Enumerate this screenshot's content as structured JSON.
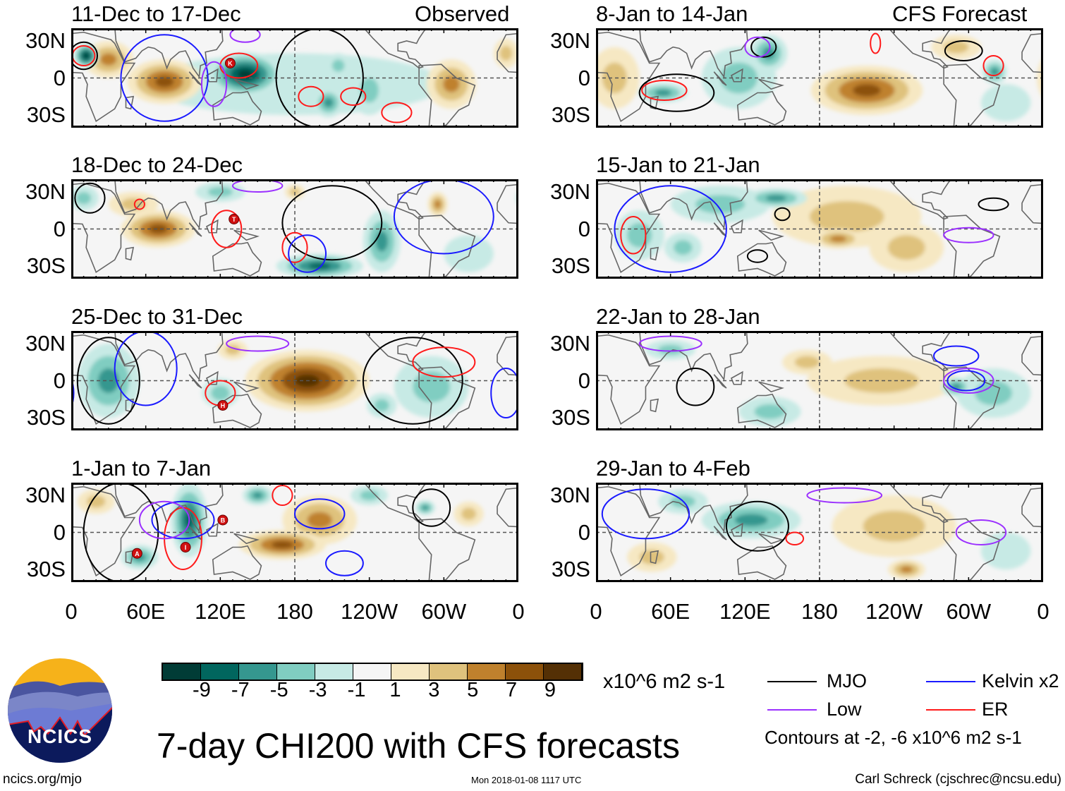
{
  "header": {
    "observed_label": "Observed",
    "forecast_label": "CFS Forecast"
  },
  "lat_labels": [
    "30N",
    "0",
    "30S"
  ],
  "xticks": [
    "0",
    "60E",
    "120E",
    "180",
    "120W",
    "60W",
    "0"
  ],
  "colors": {
    "neg": [
      "#c7eae5",
      "#80cdc1",
      "#35978f",
      "#01665e",
      "#013c36"
    ],
    "pos": [
      "#f6e8c3",
      "#dfc27d",
      "#bf812d",
      "#8c510a",
      "#543005"
    ],
    "neutral": "#f5f5f5",
    "MJO": "#000000",
    "Kelvin": "#1a1aff",
    "Low": "#9b30ff",
    "ER": "#ff1a1a"
  },
  "panels": [
    {
      "title": "11-Dec to 17-Dec",
      "col": 0,
      "row": 0,
      "anom": [
        [
          180,
          -5,
          120,
          25,
          -1
        ],
        [
          75,
          -3,
          30,
          18,
          7
        ],
        [
          30,
          15,
          20,
          15,
          5
        ],
        [
          140,
          3,
          30,
          18,
          -9
        ],
        [
          12,
          18,
          10,
          10,
          -9
        ],
        [
          207,
          -20,
          12,
          12,
          -5
        ],
        [
          215,
          10,
          10,
          10,
          -3
        ],
        [
          306,
          -5,
          20,
          20,
          5
        ],
        [
          240,
          -10,
          15,
          20,
          -3
        ],
        [
          350,
          20,
          10,
          12,
          3
        ]
      ],
      "contours": [
        [
          "Kelvin",
          75,
          0,
          35,
          35
        ],
        [
          "ER",
          135,
          10,
          15,
          10
        ],
        [
          "MJO",
          200,
          0,
          35,
          40
        ],
        [
          "ER",
          193,
          -15,
          10,
          8
        ],
        [
          "ER",
          227,
          -15,
          10,
          7
        ],
        [
          "ER",
          262,
          -28,
          12,
          8
        ],
        [
          "Low",
          115,
          -5,
          10,
          18
        ],
        [
          "Low",
          140,
          35,
          12,
          6
        ],
        [
          "MJO",
          10,
          18,
          11,
          11
        ],
        [
          "ER",
          10,
          18,
          9,
          8
        ]
      ],
      "markers": [
        [
          "K",
          128,
          12
        ]
      ]
    },
    {
      "title": "18-Dec to 24-Dec",
      "col": 0,
      "row": 1,
      "anom": [
        [
          70,
          0,
          30,
          15,
          7
        ],
        [
          50,
          20,
          20,
          10,
          3
        ],
        [
          295,
          20,
          8,
          10,
          5
        ],
        [
          200,
          -30,
          35,
          10,
          -7
        ],
        [
          250,
          -10,
          15,
          25,
          -5
        ],
        [
          10,
          25,
          12,
          10,
          -3
        ],
        [
          120,
          30,
          20,
          8,
          -3
        ],
        [
          180,
          30,
          8,
          6,
          3
        ],
        [
          320,
          -20,
          20,
          15,
          -1
        ]
      ],
      "contours": [
        [
          "MJO",
          210,
          5,
          40,
          30
        ],
        [
          "ER",
          125,
          0,
          12,
          15
        ],
        [
          "ER",
          180,
          -15,
          10,
          12
        ],
        [
          "Kelvin",
          190,
          -20,
          15,
          15
        ],
        [
          "Kelvin",
          300,
          10,
          40,
          30
        ],
        [
          "Low",
          150,
          35,
          20,
          5
        ],
        [
          "MJO",
          15,
          25,
          12,
          12
        ],
        [
          "ER",
          55,
          20,
          4,
          4
        ]
      ],
      "markers": [
        [
          "T",
          131,
          8
        ]
      ]
    },
    {
      "title": "25-Dec to 31-Dec",
      "col": 0,
      "row": 2,
      "anom": [
        [
          190,
          0,
          50,
          25,
          9
        ],
        [
          30,
          0,
          25,
          30,
          -5
        ],
        [
          120,
          -10,
          15,
          12,
          -3
        ],
        [
          290,
          -5,
          30,
          25,
          -3
        ],
        [
          250,
          -20,
          12,
          10,
          -3
        ],
        [
          130,
          25,
          12,
          8,
          3
        ]
      ],
      "contours": [
        [
          "MJO",
          30,
          0,
          25,
          35
        ],
        [
          "MJO",
          275,
          0,
          40,
          35
        ],
        [
          "ER",
          300,
          15,
          25,
          12
        ],
        [
          "ER",
          120,
          -10,
          12,
          10
        ],
        [
          "Kelvin",
          60,
          10,
          25,
          30
        ],
        [
          "Low",
          150,
          30,
          25,
          6
        ],
        [
          "Kelvin",
          350,
          -10,
          12,
          20
        ]
      ],
      "markers": [
        [
          "H",
          122,
          -20
        ]
      ]
    },
    {
      "title": "1-Jan to 7-Jan",
      "col": 0,
      "row": 3,
      "anom": [
        [
          170,
          -10,
          35,
          12,
          7
        ],
        [
          200,
          10,
          30,
          20,
          5
        ],
        [
          95,
          10,
          15,
          30,
          -7
        ],
        [
          150,
          30,
          12,
          8,
          -5
        ],
        [
          55,
          -20,
          15,
          10,
          -5
        ],
        [
          285,
          20,
          8,
          6,
          -5
        ],
        [
          320,
          15,
          12,
          10,
          3
        ],
        [
          20,
          25,
          15,
          10,
          3
        ],
        [
          240,
          30,
          15,
          8,
          -3
        ]
      ],
      "contours": [
        [
          "MJO",
          290,
          20,
          15,
          15
        ],
        [
          "MJO",
          40,
          0,
          30,
          40
        ],
        [
          "ER",
          90,
          -5,
          15,
          25
        ],
        [
          "Kelvin",
          90,
          10,
          25,
          15
        ],
        [
          "Kelvin",
          200,
          15,
          20,
          12
        ],
        [
          "Kelvin",
          220,
          -25,
          15,
          10
        ],
        [
          "Low",
          75,
          10,
          20,
          15
        ],
        [
          "ER",
          170,
          30,
          8,
          8
        ]
      ],
      "markers": [
        [
          "B",
          122,
          10
        ],
        [
          "A",
          53,
          -17
        ],
        [
          "I",
          92,
          -12
        ]
      ]
    },
    {
      "title": "8-Jan to 14-Jan",
      "col": 1,
      "row": 0,
      "anom": [
        [
          218,
          -10,
          45,
          20,
          7
        ],
        [
          54,
          -12,
          20,
          8,
          -5
        ],
        [
          139,
          20,
          15,
          15,
          -5
        ],
        [
          115,
          0,
          30,
          25,
          -3
        ],
        [
          15,
          0,
          20,
          25,
          3
        ],
        [
          321,
          5,
          10,
          10,
          -5
        ],
        [
          290,
          25,
          20,
          10,
          3
        ],
        [
          330,
          -20,
          20,
          15,
          -1
        ]
      ],
      "contours": [
        [
          "MJO",
          65,
          -12,
          30,
          15
        ],
        [
          "MJO",
          135,
          25,
          10,
          8
        ],
        [
          "MJO",
          296,
          22,
          15,
          8
        ],
        [
          "ER",
          55,
          -10,
          18,
          8
        ],
        [
          "ER",
          225,
          28,
          4,
          8
        ],
        [
          "ER",
          320,
          10,
          8,
          8
        ],
        [
          "Low",
          130,
          25,
          10,
          8
        ]
      ],
      "markers": []
    },
    {
      "title": "15-Jan to 21-Jan",
      "col": 1,
      "row": 1,
      "anom": [
        [
          202,
          10,
          60,
          25,
          3
        ],
        [
          195,
          -8,
          20,
          8,
          5
        ],
        [
          145,
          25,
          25,
          8,
          -5
        ],
        [
          100,
          20,
          40,
          15,
          -3
        ],
        [
          35,
          -5,
          20,
          20,
          -3
        ],
        [
          70,
          -15,
          15,
          12,
          -3
        ],
        [
          250,
          -15,
          30,
          20,
          3
        ]
      ],
      "contours": [
        [
          "MJO",
          150,
          12,
          6,
          5
        ],
        [
          "MJO",
          130,
          -22,
          8,
          5
        ],
        [
          "MJO",
          320,
          20,
          12,
          5
        ],
        [
          "ER",
          30,
          -5,
          10,
          15
        ],
        [
          "Kelvin",
          60,
          0,
          45,
          35
        ],
        [
          "Low",
          300,
          -5,
          20,
          6
        ]
      ],
      "markers": []
    },
    {
      "title": "22-Jan to 28-Jan",
      "col": 1,
      "row": 2,
      "anom": [
        [
          230,
          0,
          60,
          20,
          3
        ],
        [
          170,
          15,
          20,
          10,
          3
        ],
        [
          290,
          -5,
          12,
          8,
          -5
        ],
        [
          320,
          -10,
          30,
          20,
          -3
        ],
        [
          60,
          25,
          20,
          8,
          -3
        ],
        [
          140,
          -25,
          25,
          12,
          -3
        ]
      ],
      "contours": [
        [
          "MJO",
          80,
          -5,
          15,
          15
        ],
        [
          "Kelvin",
          290,
          20,
          18,
          8
        ],
        [
          "Kelvin",
          298,
          0,
          15,
          8
        ],
        [
          "Low",
          300,
          0,
          20,
          10
        ],
        [
          "Low",
          60,
          30,
          25,
          6
        ]
      ],
      "markers": []
    },
    {
      "title": "29-Jan to 4-Feb",
      "col": 1,
      "row": 3,
      "anom": [
        [
          240,
          5,
          50,
          25,
          3
        ],
        [
          250,
          -30,
          15,
          8,
          5
        ],
        [
          125,
          10,
          40,
          15,
          -5
        ],
        [
          70,
          25,
          20,
          10,
          -3
        ],
        [
          45,
          -20,
          20,
          12,
          3
        ],
        [
          330,
          -15,
          20,
          15,
          -1
        ]
      ],
      "contours": [
        [
          "MJO",
          130,
          5,
          25,
          20
        ],
        [
          "ER",
          160,
          -5,
          7,
          5
        ],
        [
          "Kelvin",
          40,
          15,
          35,
          20
        ],
        [
          "Low",
          310,
          0,
          20,
          10
        ],
        [
          "Low",
          200,
          30,
          30,
          6
        ]
      ],
      "markers": []
    }
  ],
  "colorbar": {
    "labels": [
      "-9",
      "-7",
      "-5",
      "-3",
      "-1",
      "1",
      "3",
      "5",
      "7",
      "9"
    ],
    "units": "x10^6 m2 s-1"
  },
  "legend": {
    "mjo": "MJO",
    "kelvin": "Kelvin x2",
    "low": "Low",
    "er": "ER",
    "note": "Contours at -2, -6 x10^6 m2 s-1"
  },
  "title": "7-day CHI200 with CFS forecasts",
  "logo_text": "NCICS",
  "footer": {
    "url": "ncics.org/mjo",
    "timestamp": "Mon 2018-01-08 1117 UTC",
    "author": "Carl Schreck (cjschrec@ncsu.edu)"
  }
}
